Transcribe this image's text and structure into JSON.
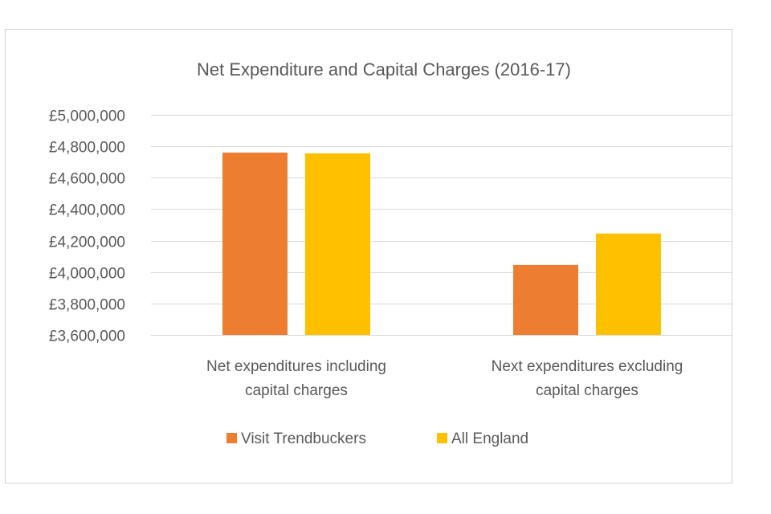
{
  "chart_data": {
    "type": "bar",
    "title": "Net Expenditure and Capital Charges (2016-17)",
    "categories": [
      [
        "Net expenditures including",
        "capital charges"
      ],
      [
        "Next expenditures excluding",
        "capital charges"
      ]
    ],
    "series": [
      {
        "name": "Visit Trendbuckers",
        "color": "#ED7D31",
        "values": [
          4760000,
          4045000
        ]
      },
      {
        "name": "All England",
        "color": "#FFC000",
        "values": [
          4755000,
          4245000
        ]
      }
    ],
    "ylim": [
      3600000,
      5000000
    ],
    "yticks": [
      5000000,
      4800000,
      4600000,
      4400000,
      4200000,
      4000000,
      3800000,
      3600000
    ],
    "ytick_labels": [
      "£5,000,000",
      "£4,800,000",
      "£4,600,000",
      "£4,400,000",
      "£4,200,000",
      "£4,000,000",
      "£3,800,000",
      "£3,600,000"
    ],
    "grid": true,
    "legend": "bottom"
  }
}
